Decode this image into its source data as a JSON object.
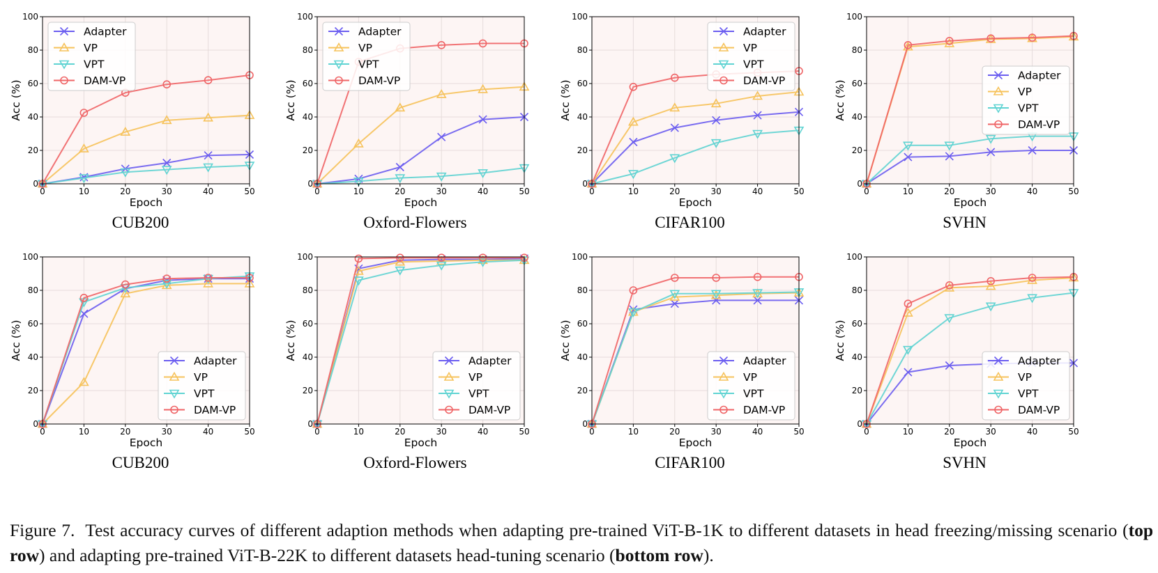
{
  "figure": {
    "caption": {
      "label": "Figure 7.",
      "text_1": "Test accuracy curves of different adaption methods when adapting pre-trained ViT-B-1K to different datasets in head freezing/missing scenario (",
      "bold_1": "top row",
      "text_2": ") and adapting pre-trained ViT-B-22K to different datasets head-tuning scenario (",
      "bold_2": "bottom row",
      "text_3": ")."
    }
  },
  "colors": {
    "Adapter": "#6a5cf0",
    "VP": "#f6c25a",
    "VPT": "#5fd3d2",
    "DAM-VP": "#ef6466",
    "plot_bg": "#fdf5f4",
    "grid": "#e6dcdb"
  },
  "markers": {
    "Adapter": "x",
    "VP": "triangle-up",
    "VPT": "triangle-down",
    "DAM-VP": "circle"
  },
  "chart_data": [
    {
      "type": "line",
      "title": "CUB200",
      "xlabel": "Epoch",
      "ylabel": "Acc (%)",
      "xlim": [
        0,
        50
      ],
      "ylim": [
        0,
        100
      ],
      "xticks": [
        0,
        10,
        20,
        30,
        40,
        50
      ],
      "yticks": [
        0,
        20,
        40,
        60,
        80,
        100
      ],
      "grid": true,
      "legend": "upper-left",
      "x": [
        0,
        10,
        20,
        30,
        40,
        50
      ],
      "series": [
        {
          "name": "Adapter",
          "values": [
            0,
            4,
            9,
            12.5,
            17,
            17.5
          ]
        },
        {
          "name": "VP",
          "values": [
            0,
            21,
            31,
            38,
            39.5,
            41
          ]
        },
        {
          "name": "VPT",
          "values": [
            0,
            3.5,
            7,
            8.5,
            10,
            11
          ]
        },
        {
          "name": "DAM-VP",
          "values": [
            0,
            42.5,
            54.5,
            59.5,
            62,
            65
          ]
        }
      ]
    },
    {
      "type": "line",
      "title": "Oxford-Flowers",
      "xlabel": "Epoch",
      "ylabel": "Acc (%)",
      "xlim": [
        0,
        50
      ],
      "ylim": [
        0,
        100
      ],
      "xticks": [
        0,
        10,
        20,
        30,
        40,
        50
      ],
      "yticks": [
        0,
        20,
        40,
        60,
        80,
        100
      ],
      "grid": true,
      "legend": "upper-left",
      "x": [
        0,
        10,
        20,
        30,
        40,
        50
      ],
      "series": [
        {
          "name": "Adapter",
          "values": [
            0,
            3,
            10,
            28,
            38.5,
            40
          ]
        },
        {
          "name": "VP",
          "values": [
            0,
            24,
            45.5,
            53.5,
            56.5,
            58
          ]
        },
        {
          "name": "VPT",
          "values": [
            0,
            1.5,
            3.5,
            4.5,
            6.5,
            9.5
          ]
        },
        {
          "name": "DAM-VP",
          "values": [
            0,
            73,
            81,
            83,
            84,
            84
          ]
        }
      ]
    },
    {
      "type": "line",
      "title": "CIFAR100",
      "xlabel": "Epoch",
      "ylabel": "Acc (%)",
      "xlim": [
        0,
        50
      ],
      "ylim": [
        0,
        100
      ],
      "xticks": [
        0,
        10,
        20,
        30,
        40,
        50
      ],
      "yticks": [
        0,
        20,
        40,
        60,
        80,
        100
      ],
      "grid": true,
      "legend": "upper-right",
      "x": [
        0,
        10,
        20,
        30,
        40,
        50
      ],
      "series": [
        {
          "name": "Adapter",
          "values": [
            0,
            25,
            33.5,
            38,
            41,
            43
          ]
        },
        {
          "name": "VP",
          "values": [
            0,
            37,
            45.5,
            48,
            52.5,
            55
          ]
        },
        {
          "name": "VPT",
          "values": [
            0,
            6,
            15.5,
            24.5,
            30,
            32
          ]
        },
        {
          "name": "DAM-VP",
          "values": [
            0,
            58,
            63.5,
            65.5,
            66.5,
            67.5
          ]
        }
      ]
    },
    {
      "type": "line",
      "title": "SVHN",
      "xlabel": "Epoch",
      "ylabel": "Acc (%)",
      "xlim": [
        0,
        50
      ],
      "ylim": [
        0,
        100
      ],
      "xticks": [
        0,
        10,
        20,
        30,
        40,
        50
      ],
      "yticks": [
        0,
        20,
        40,
        60,
        80,
        100
      ],
      "grid": true,
      "legend": "center-right",
      "x": [
        0,
        10,
        20,
        30,
        40,
        50
      ],
      "series": [
        {
          "name": "Adapter",
          "values": [
            0,
            16,
            16.5,
            19,
            20,
            20
          ]
        },
        {
          "name": "VP",
          "values": [
            0,
            82,
            84,
            86.5,
            87,
            88
          ]
        },
        {
          "name": "VPT",
          "values": [
            0,
            23,
            23,
            27,
            28.5,
            28.5
          ]
        },
        {
          "name": "DAM-VP",
          "values": [
            0,
            83,
            85.5,
            87,
            87.5,
            88.5
          ]
        }
      ]
    },
    {
      "type": "line",
      "title": "CUB200",
      "xlabel": "Epoch",
      "ylabel": "Acc (%)",
      "xlim": [
        0,
        50
      ],
      "ylim": [
        0,
        100
      ],
      "xticks": [
        0,
        10,
        20,
        30,
        40,
        50
      ],
      "yticks": [
        0,
        20,
        40,
        60,
        80,
        100
      ],
      "grid": true,
      "legend": "lower-right",
      "x": [
        0,
        10,
        20,
        30,
        40,
        50
      ],
      "series": [
        {
          "name": "Adapter",
          "values": [
            0,
            66,
            81,
            86,
            87,
            87
          ]
        },
        {
          "name": "VP",
          "values": [
            0,
            25,
            78,
            83,
            84,
            84
          ]
        },
        {
          "name": "VPT",
          "values": [
            0,
            73,
            81.5,
            84,
            87,
            88.5
          ]
        },
        {
          "name": "DAM-VP",
          "values": [
            0,
            75.5,
            83.5,
            87,
            87.5,
            87.5
          ]
        }
      ]
    },
    {
      "type": "line",
      "title": "Oxford-Flowers",
      "xlabel": "Epoch",
      "ylabel": "Acc (%)",
      "xlim": [
        0,
        50
      ],
      "ylim": [
        0,
        100
      ],
      "xticks": [
        0,
        10,
        20,
        30,
        40,
        50
      ],
      "yticks": [
        0,
        20,
        40,
        60,
        80,
        100
      ],
      "grid": true,
      "legend": "lower-right",
      "x": [
        0,
        10,
        20,
        30,
        40,
        50
      ],
      "series": [
        {
          "name": "Adapter",
          "values": [
            0,
            93,
            98,
            98.5,
            98.5,
            99
          ]
        },
        {
          "name": "VP",
          "values": [
            0,
            91.5,
            97,
            97.5,
            98,
            98
          ]
        },
        {
          "name": "VPT",
          "values": [
            0,
            86,
            92,
            95,
            97,
            98
          ]
        },
        {
          "name": "DAM-VP",
          "values": [
            0,
            99,
            99.5,
            99.5,
            99.5,
            99.5
          ]
        }
      ]
    },
    {
      "type": "line",
      "title": "CIFAR100",
      "xlabel": "Epoch",
      "ylabel": "Acc (%)",
      "xlim": [
        0,
        50
      ],
      "ylim": [
        0,
        100
      ],
      "xticks": [
        0,
        10,
        20,
        30,
        40,
        50
      ],
      "yticks": [
        0,
        20,
        40,
        60,
        80,
        100
      ],
      "grid": true,
      "legend": "lower-right",
      "x": [
        0,
        10,
        20,
        30,
        40,
        50
      ],
      "series": [
        {
          "name": "Adapter",
          "values": [
            0,
            68.5,
            72,
            74,
            74,
            74
          ]
        },
        {
          "name": "VP",
          "values": [
            0,
            67,
            76,
            77,
            78,
            78.5
          ]
        },
        {
          "name": "VPT",
          "values": [
            0,
            67,
            78,
            78,
            78.5,
            79
          ]
        },
        {
          "name": "DAM-VP",
          "values": [
            0,
            80,
            87.5,
            87.5,
            88,
            88
          ]
        }
      ]
    },
    {
      "type": "line",
      "title": "SVHN",
      "xlabel": "Epoch",
      "ylabel": "Acc (%)",
      "xlim": [
        0,
        50
      ],
      "ylim": [
        0,
        100
      ],
      "xticks": [
        0,
        10,
        20,
        30,
        40,
        50
      ],
      "yticks": [
        0,
        20,
        40,
        60,
        80,
        100
      ],
      "grid": true,
      "legend": "lower-right",
      "x": [
        0,
        10,
        20,
        30,
        40,
        50
      ],
      "series": [
        {
          "name": "Adapter",
          "values": [
            0,
            31,
            35,
            36,
            36.5,
            36.5
          ]
        },
        {
          "name": "VP",
          "values": [
            0,
            66.5,
            81.5,
            82.5,
            86,
            87.5
          ]
        },
        {
          "name": "VPT",
          "values": [
            0,
            44.5,
            63.5,
            70.5,
            75.5,
            78.5
          ]
        },
        {
          "name": "DAM-VP",
          "values": [
            0,
            72,
            83,
            85.5,
            87.5,
            88
          ]
        }
      ]
    }
  ]
}
